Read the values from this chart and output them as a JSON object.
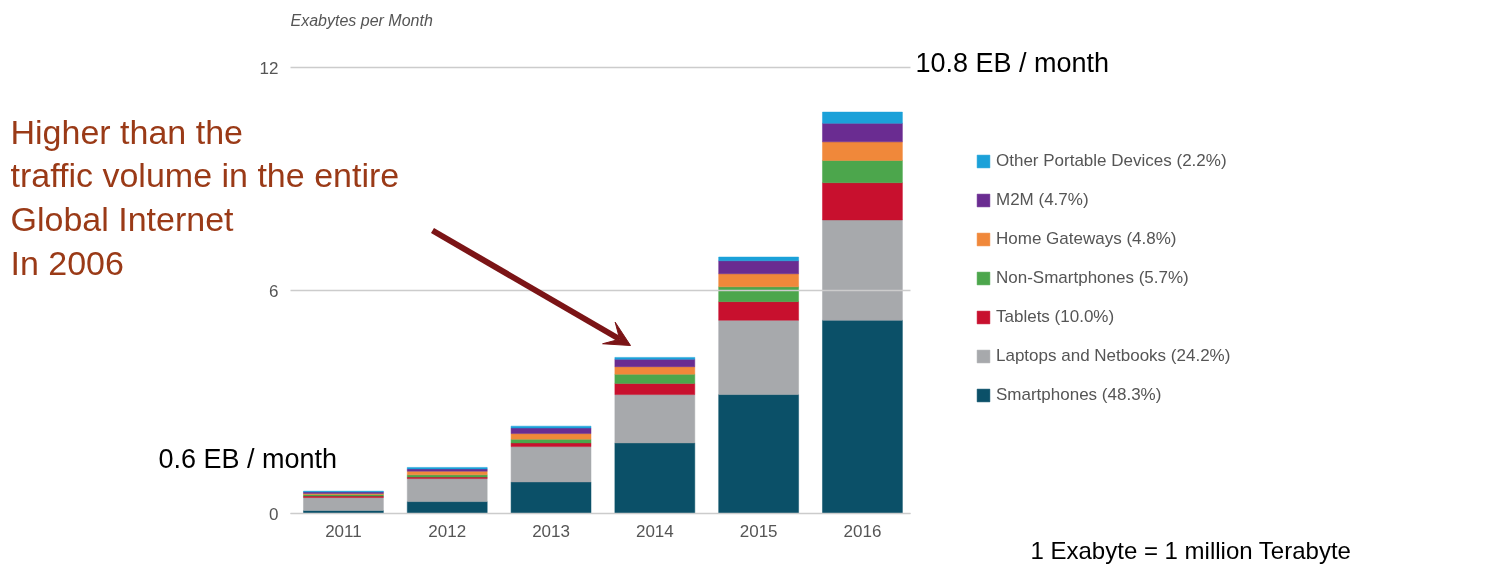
{
  "chart_data": {
    "type": "bar",
    "stacked": true,
    "ylabel": "Exabytes per Month",
    "categories": [
      "2011",
      "2012",
      "2013",
      "2014",
      "2015",
      "2016"
    ],
    "series": [
      {
        "name": "Smartphones (48.3%)",
        "color": "#0b5068",
        "values": [
          0.08,
          0.32,
          0.85,
          1.9,
          3.2,
          5.2
        ]
      },
      {
        "name": "Laptops and Netbooks (24.2%)",
        "color": "#a7a9ac",
        "values": [
          0.35,
          0.62,
          0.95,
          1.3,
          2.0,
          2.7
        ]
      },
      {
        "name": "Tablets (10.0%)",
        "color": "#c8102e",
        "values": [
          0.04,
          0.04,
          0.1,
          0.3,
          0.5,
          1.0
        ]
      },
      {
        "name": "Non-Smartphones (5.7%)",
        "color": "#4ca64c",
        "values": [
          0.04,
          0.06,
          0.1,
          0.25,
          0.4,
          0.6
        ]
      },
      {
        "name": "Home Gateways (4.8%)",
        "color": "#f0883a",
        "values": [
          0.03,
          0.1,
          0.15,
          0.2,
          0.35,
          0.5
        ]
      },
      {
        "name": "M2M (4.7%)",
        "color": "#6a2c91",
        "values": [
          0.04,
          0.06,
          0.15,
          0.2,
          0.35,
          0.5
        ]
      },
      {
        "name": "Other Portable Devices (2.2%)",
        "color": "#1ba1d9",
        "values": [
          0.02,
          0.04,
          0.05,
          0.05,
          0.1,
          0.3
        ]
      }
    ],
    "ylim": [
      0,
      12
    ],
    "yticks": [
      0,
      6,
      12
    ],
    "grid": "y",
    "legend": "right",
    "annotations": [
      "Higher than the\ntraffic volume in the entire\nGlobal Internet\nIn 2006",
      "10.8  EB / month",
      "0.6 EB / month",
      "1 Exabyte = 1 million Terabyte"
    ]
  }
}
